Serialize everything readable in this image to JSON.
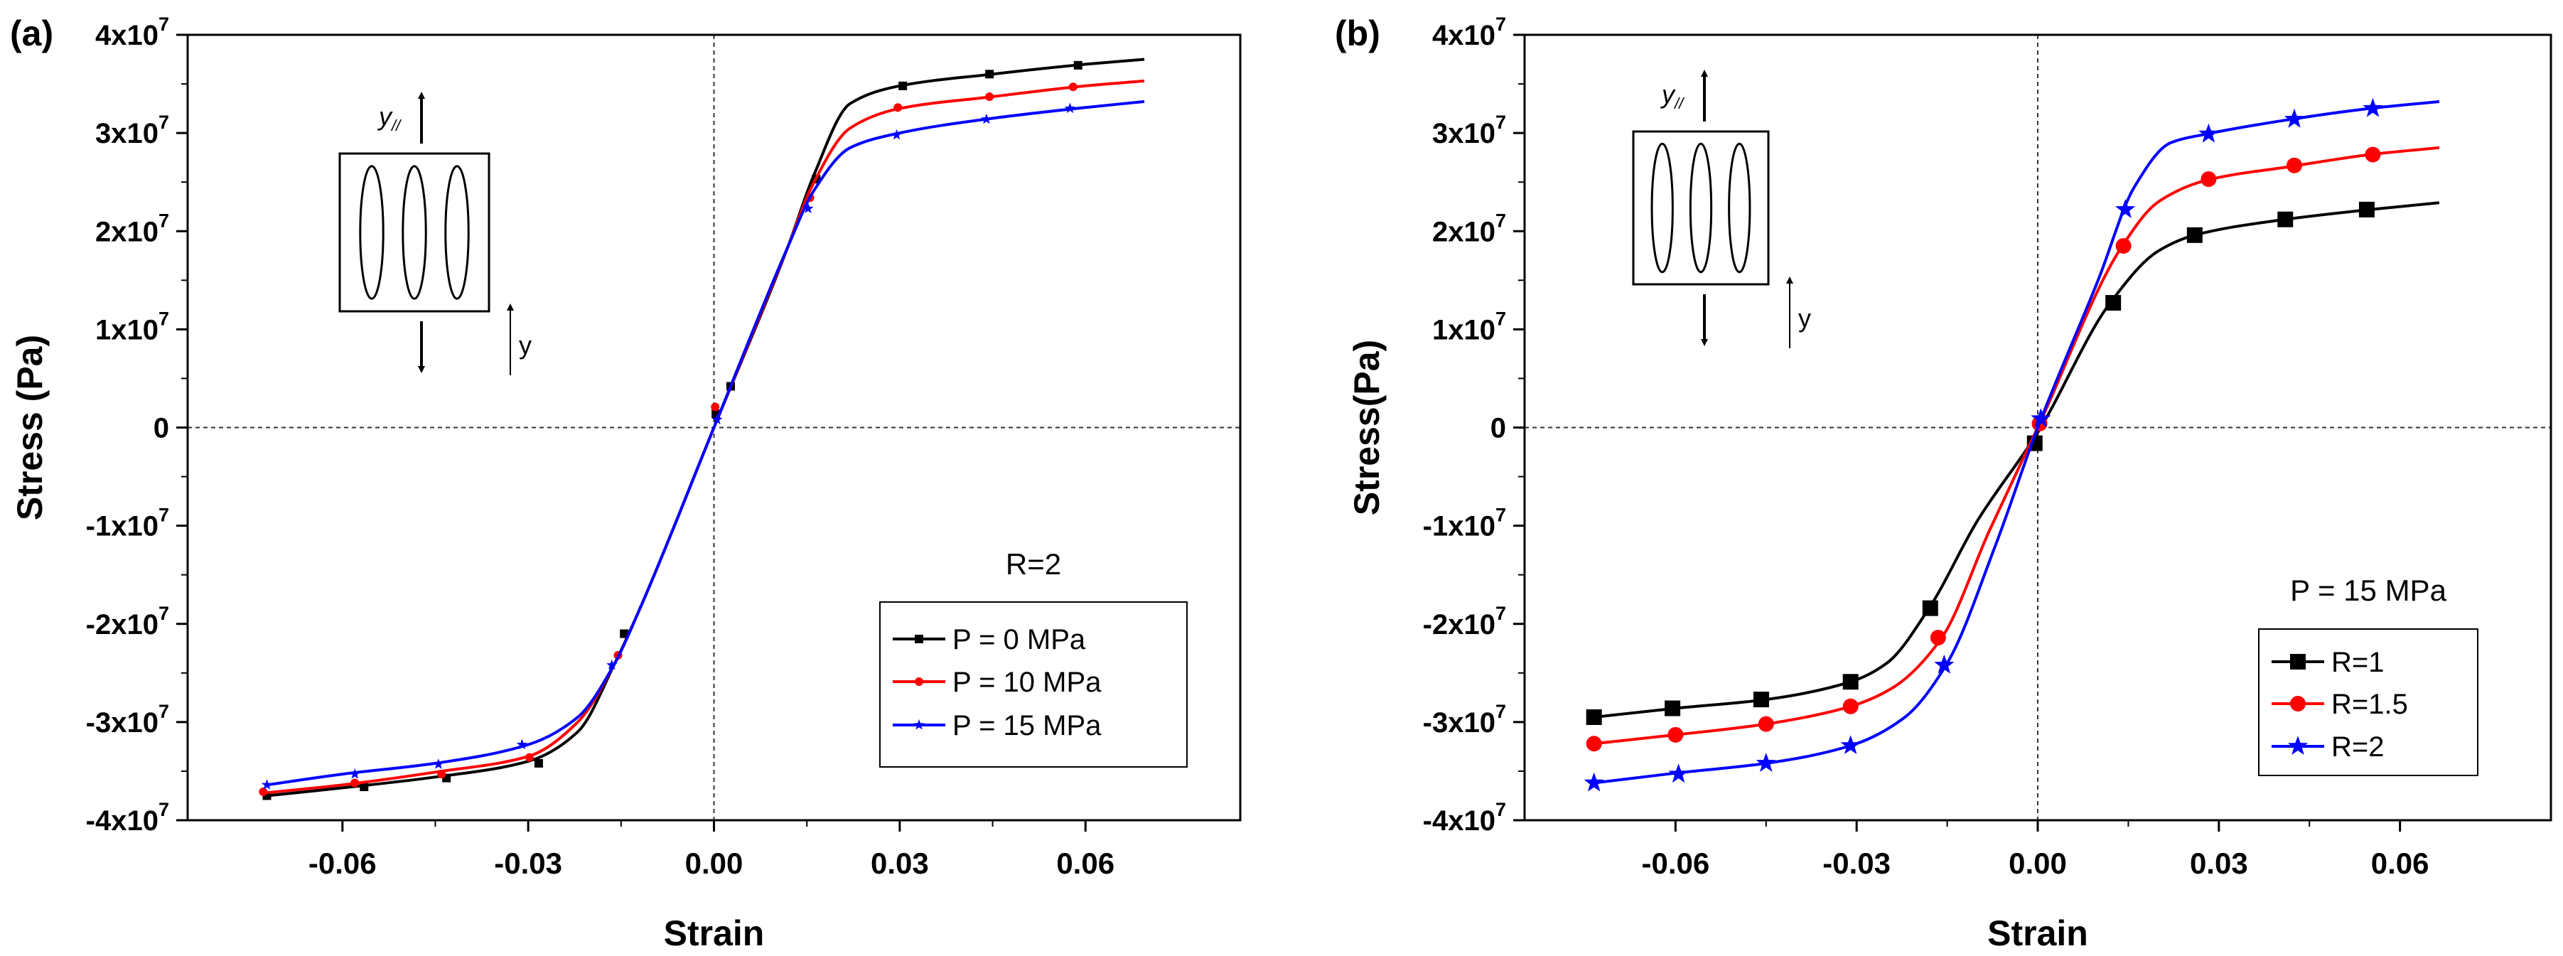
{
  "chart_data": [
    {
      "panel_label": "(a)",
      "type": "line",
      "xlabel": "Strain",
      "ylabel": "Stress (Pa)",
      "xlim": [
        -0.085,
        0.085
      ],
      "ylim": [
        -40000000,
        40000000
      ],
      "xticks": [
        -0.06,
        -0.03,
        0.0,
        0.03,
        0.06
      ],
      "xtick_labels": [
        "-0.06",
        "-0.03",
        "0.00",
        "0.03",
        "0.06"
      ],
      "yticks": [
        -40000000,
        -30000000,
        -20000000,
        -10000000,
        0,
        10000000,
        20000000,
        30000000,
        40000000
      ],
      "ytick_labels": [
        {
          "mant": "-4x10",
          "exp": "7"
        },
        {
          "mant": "-3x10",
          "exp": "7"
        },
        {
          "mant": "-2x10",
          "exp": "7"
        },
        {
          "mant": "-1x10",
          "exp": "7"
        },
        {
          "mant": "0",
          "exp": ""
        },
        {
          "mant": "1x10",
          "exp": "7"
        },
        {
          "mant": "2x10",
          "exp": "7"
        },
        {
          "mant": "3x10",
          "exp": "7"
        },
        {
          "mant": "4x10",
          "exp": "7"
        }
      ],
      "grid": false,
      "reference_lines": "dashed lines at x = 0 and y = 0",
      "legend_title": "R=2",
      "legend_position": "lower-right",
      "inset_labels": {
        "top_main": "y",
        "top_sub": "//",
        "side": "y"
      },
      "series": [
        {
          "name": "P = 0 MPa",
          "color": "#000000",
          "marker": "square",
          "x": [
            -0.0722,
            -0.06,
            -0.045,
            -0.03,
            -0.022,
            -0.016,
            -0.012,
            0.0,
            0.012,
            0.016,
            0.022,
            0.03,
            0.045,
            0.06,
            0.0695
          ],
          "y": [
            -37500000,
            -36700000,
            -35600000,
            -34000000,
            -31000000,
            -24000000,
            -18500000,
            0,
            18500000,
            25500000,
            33000000,
            34800000,
            36000000,
            37000000,
            37500000
          ],
          "marker_x": [
            -0.0722,
            -0.0565,
            -0.0432,
            -0.0283,
            -0.0145,
            0.0003,
            0.0027,
            0.0165,
            0.0305,
            0.0445,
            0.0588
          ],
          "marker_y": [
            -37500000,
            -36600000,
            -35700000,
            -34200000,
            -21000000,
            1400000,
            4200000,
            25300000,
            34800000,
            36000000,
            36900000
          ]
        },
        {
          "name": "P = 10 MPa",
          "color": "#ff0000",
          "marker": "circle",
          "x": [
            -0.0722,
            -0.06,
            -0.045,
            -0.03,
            -0.022,
            -0.016,
            -0.012,
            0.0,
            0.012,
            0.016,
            0.022,
            0.03,
            0.045,
            0.06,
            0.0695
          ],
          "y": [
            -37200000,
            -36400000,
            -35100000,
            -33500000,
            -30000000,
            -24000000,
            -18500000,
            0,
            18500000,
            24800000,
            30500000,
            32500000,
            33700000,
            34800000,
            35300000
          ],
          "marker_x": [
            -0.0728,
            -0.058,
            -0.044,
            -0.0298,
            -0.0155,
            0.0002,
            0.0155,
            0.0297,
            0.0445,
            0.058
          ],
          "marker_y": [
            -37100000,
            -36200000,
            -35300000,
            -33600000,
            -23200000,
            2100000,
            23400000,
            32600000,
            33700000,
            34700000
          ]
        },
        {
          "name": "P = 15 MPa",
          "color": "#0000ff",
          "marker": "star",
          "x": [
            -0.0722,
            -0.06,
            -0.045,
            -0.03,
            -0.022,
            -0.016,
            -0.012,
            0.0,
            0.012,
            0.016,
            0.022,
            0.03,
            0.045,
            0.06,
            0.0695
          ],
          "y": [
            -36400000,
            -35300000,
            -34200000,
            -32300000,
            -29500000,
            -24000000,
            -18500000,
            0,
            18500000,
            24000000,
            28500000,
            30000000,
            31500000,
            32600000,
            33200000
          ],
          "marker_x": [
            -0.0722,
            -0.058,
            -0.0445,
            -0.031,
            -0.0165,
            0.0005,
            0.0152,
            0.0295,
            0.044,
            0.0575
          ],
          "marker_y": [
            -36400000,
            -35300000,
            -34300000,
            -32300000,
            -24200000,
            800000,
            22300000,
            29800000,
            31400000,
            32500000
          ]
        }
      ]
    },
    {
      "panel_label": "(b)",
      "type": "line",
      "xlabel": "Strain",
      "ylabel": "Stress(Pa)",
      "xlim": [
        -0.085,
        0.085
      ],
      "ylim": [
        -40000000,
        40000000
      ],
      "xticks": [
        -0.06,
        -0.03,
        0.0,
        0.03,
        0.06
      ],
      "xtick_labels": [
        "-0.06",
        "-0.03",
        "0.00",
        "0.03",
        "0.06"
      ],
      "yticks": [
        -40000000,
        -30000000,
        -20000000,
        -10000000,
        0,
        10000000,
        20000000,
        30000000,
        40000000
      ],
      "ytick_labels": [
        {
          "mant": "-4x10",
          "exp": "7"
        },
        {
          "mant": "-3x10",
          "exp": "7"
        },
        {
          "mant": "-2x10",
          "exp": "7"
        },
        {
          "mant": "-1x10",
          "exp": "7"
        },
        {
          "mant": "0",
          "exp": ""
        },
        {
          "mant": "1x10",
          "exp": "7"
        },
        {
          "mant": "2x10",
          "exp": "7"
        },
        {
          "mant": "3x10",
          "exp": "7"
        },
        {
          "mant": "4x10",
          "exp": "7"
        }
      ],
      "grid": false,
      "reference_lines": "dashed lines at x = 0 and y = 0",
      "legend_title": "P = 15 MPa",
      "legend_position": "lower-right",
      "inset_labels": {
        "top_main": "y",
        "top_sub": "//",
        "side": "y"
      },
      "series": [
        {
          "name": "R=1",
          "color": "#000000",
          "marker": "square",
          "x": [
            -0.0735,
            -0.06,
            -0.045,
            -0.031,
            -0.025,
            -0.018,
            -0.01,
            0.0,
            0.012,
            0.02,
            0.026,
            0.041,
            0.055,
            0.0665
          ],
          "y": [
            -29500000,
            -28600000,
            -27700000,
            -25900000,
            -24000000,
            -18400000,
            -9500000,
            -500000,
            12700000,
            18000000,
            19600000,
            21200000,
            22200000,
            22900000
          ],
          "marker_x": [
            -0.0735,
            -0.0605,
            -0.0458,
            -0.031,
            -0.0178,
            -0.0005,
            0.0125,
            0.026,
            0.041,
            0.0545
          ],
          "marker_y": [
            -29500000,
            -28600000,
            -27700000,
            -25900000,
            -18400000,
            -1600000,
            12700000,
            19600000,
            21200000,
            22200000
          ]
        },
        {
          "name": "R=1.5",
          "color": "#ff0000",
          "marker": "circle",
          "x": [
            -0.0735,
            -0.06,
            -0.045,
            -0.031,
            -0.024,
            -0.016,
            -0.008,
            0.0,
            0.014,
            0.02,
            0.028,
            0.042,
            0.055,
            0.0665
          ],
          "y": [
            -32200000,
            -31300000,
            -30200000,
            -28400000,
            -26500000,
            -21500000,
            -10500000,
            0,
            18500000,
            23000000,
            25200000,
            26600000,
            27800000,
            28500000
          ],
          "marker_x": [
            -0.0735,
            -0.06,
            -0.045,
            -0.031,
            -0.0165,
            0.0003,
            0.0142,
            0.0283,
            0.0425,
            0.0555
          ],
          "marker_y": [
            -32200000,
            -31300000,
            -30200000,
            -28400000,
            -21400000,
            400000,
            18500000,
            25300000,
            26700000,
            27800000
          ]
        },
        {
          "name": "R=2",
          "color": "#0000ff",
          "marker": "star",
          "x": [
            -0.0735,
            -0.06,
            -0.045,
            -0.031,
            -0.022,
            -0.015,
            -0.007,
            0.0,
            0.01,
            0.016,
            0.022,
            0.028,
            0.042,
            0.055,
            0.0665
          ],
          "y": [
            -36200000,
            -35200000,
            -34200000,
            -32400000,
            -29500000,
            -24000000,
            -12000000,
            0,
            15000000,
            24500000,
            29000000,
            29900000,
            31400000,
            32500000,
            33200000
          ],
          "marker_x": [
            -0.0735,
            -0.0595,
            -0.045,
            -0.031,
            -0.0155,
            0.0005,
            0.0145,
            0.0283,
            0.0425,
            0.0555
          ],
          "marker_y": [
            -36200000,
            -35300000,
            -34200000,
            -32400000,
            -24200000,
            900000,
            22200000,
            29900000,
            31400000,
            32500000
          ]
        }
      ]
    }
  ]
}
